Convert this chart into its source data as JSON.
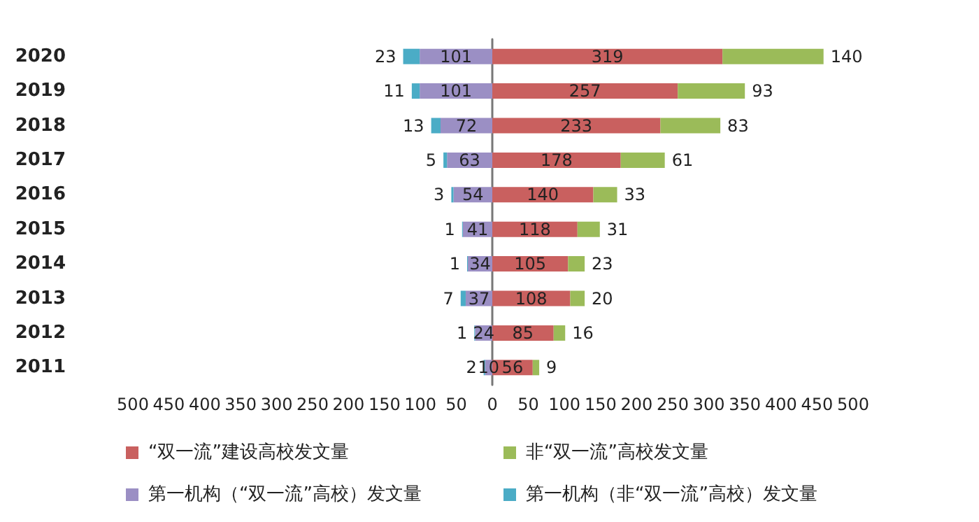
{
  "chart_data": [
    {
      "type": "bar",
      "orientation": "horizontal",
      "stacked": true,
      "categories": [
        "2020",
        "2019",
        "2018",
        "2017",
        "2016",
        "2015",
        "2014",
        "2013",
        "2012",
        "2011"
      ],
      "series": [
        {
          "name": "第一机构（“双一流”高校）发文量",
          "color": "#9b8fc4",
          "values": [
            101,
            101,
            72,
            63,
            54,
            41,
            34,
            37,
            24,
            10
          ]
        },
        {
          "name": "第一机构（非“双一流”高校）发文量",
          "color": "#4bacc6",
          "values": [
            23,
            11,
            13,
            5,
            3,
            1,
            1,
            7,
            1,
            2
          ]
        }
      ],
      "data_labels": true,
      "xlim": [
        500,
        0
      ],
      "xticks": [
        500,
        450,
        400,
        350,
        300,
        250,
        200,
        150,
        100,
        50
      ],
      "grid": false,
      "legend": "bottom"
    },
    {
      "type": "bar",
      "orientation": "horizontal",
      "stacked": true,
      "categories": [
        "2020",
        "2019",
        "2018",
        "2017",
        "2016",
        "2015",
        "2014",
        "2013",
        "2012",
        "2011"
      ],
      "series": [
        {
          "name": "“双一流”建设高校发文量",
          "color": "#c9605f",
          "values": [
            319,
            257,
            233,
            178,
            140,
            118,
            105,
            108,
            85,
            56
          ]
        },
        {
          "name": "非“双一流”高校发文量",
          "color": "#9bbb59",
          "values": [
            140,
            93,
            83,
            61,
            33,
            31,
            23,
            20,
            16,
            9
          ]
        }
      ],
      "data_labels": true,
      "xlim": [
        0,
        500
      ],
      "xticks": [
        0,
        50,
        100,
        150,
        200,
        250,
        300,
        350,
        400,
        450,
        500
      ],
      "grid": false,
      "legend": "bottom",
      "tick_labels": "x"
    }
  ]
}
